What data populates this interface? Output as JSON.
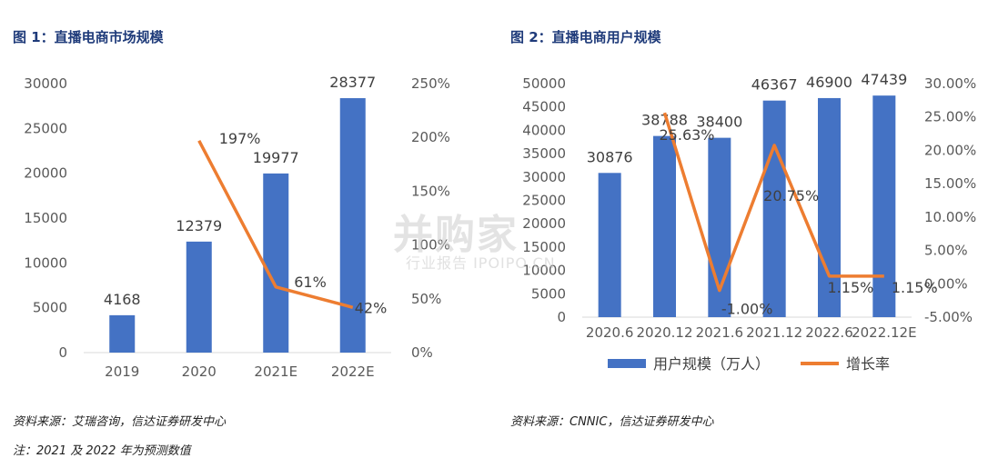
{
  "figure1": {
    "title": "图 1：直播电商市场规模",
    "source": "资料来源：艾瑞咨询，信达证券研发中心",
    "note": "注：2021 及 2022 年为预测数值"
  },
  "figure2": {
    "title": "图 2：直播电商用户规模",
    "source": "资料来源：CNNIC，信达证券研发中心"
  },
  "watermark": {
    "line1": "并购家",
    "line2": "行业报告 IPOIPO.CN"
  },
  "chart_data": [
    {
      "type": "bar",
      "categories": [
        "2019",
        "2020",
        "2021E",
        "2022E"
      ],
      "series": [
        {
          "kind": "bar",
          "axis": "left",
          "values": [
            4168,
            12379,
            19977,
            28377
          ],
          "labels": [
            "4168",
            "12379",
            "19977",
            "28377"
          ]
        },
        {
          "kind": "line",
          "axis": "right",
          "values": [
            null,
            197,
            61,
            42
          ],
          "labels": [
            null,
            "197%",
            "61%",
            "42%"
          ]
        }
      ],
      "ylim_left": [
        0,
        30000
      ],
      "yticks_left": [
        "0",
        "5000",
        "10000",
        "15000",
        "20000",
        "25000",
        "30000"
      ],
      "ylim_right": [
        0,
        250
      ],
      "yticks_right": [
        "0%",
        "50%",
        "100%",
        "150%",
        "200%",
        "250%"
      ],
      "grid": false
    },
    {
      "type": "bar",
      "categories": [
        "2020.6",
        "2020.12",
        "2021.6",
        "2021.12",
        "2022.6",
        "2022.12E"
      ],
      "series": [
        {
          "name": "用户规模（万人）",
          "kind": "bar",
          "axis": "left",
          "values": [
            30876,
            38788,
            38400,
            46367,
            46900,
            47439
          ],
          "labels": [
            "30876",
            "38788",
            "38400",
            "46367",
            "46900",
            "47439"
          ]
        },
        {
          "name": "增长率",
          "kind": "line",
          "axis": "right",
          "values": [
            null,
            25.63,
            -1.0,
            20.75,
            1.15,
            1.15
          ],
          "labels": [
            null,
            "25.63%",
            "-1.00%",
            "20.75%",
            "1.15%",
            "1.15%"
          ]
        }
      ],
      "ylim_left": [
        0,
        50000
      ],
      "yticks_left": [
        "0",
        "5000",
        "10000",
        "15000",
        "20000",
        "25000",
        "30000",
        "35000",
        "40000",
        "45000",
        "50000"
      ],
      "ylim_right": [
        -5,
        30
      ],
      "yticks_right": [
        "-5.00%",
        "0.00%",
        "5.00%",
        "10.00%",
        "15.00%",
        "20.00%",
        "25.00%",
        "30.00%"
      ],
      "legend": "bottom",
      "grid": false
    }
  ],
  "colors": {
    "bar": "#4472C4",
    "line": "#ED7D31",
    "title": "#1F3B7A"
  }
}
